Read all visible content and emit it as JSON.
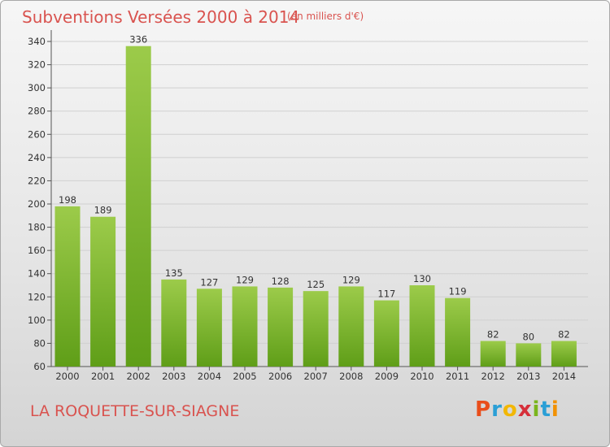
{
  "header": {
    "title": "Subventions Versées 2000 à 2014",
    "subtitle": "(en milliers d'€)"
  },
  "footer": {
    "commune": "LA ROQUETTE-SUR-SIAGNE",
    "logo_letters": [
      "P",
      "r",
      "o",
      "x",
      "i",
      "t",
      "i"
    ],
    "logo_colors": [
      "#e94e1b",
      "#2a9fd6",
      "#f2b705",
      "#d62f3a",
      "#7ab51d",
      "#2a9fd6",
      "#f29100"
    ]
  },
  "colors": {
    "bar_top": "#9ccb4a",
    "bar_bottom": "#5f9e18",
    "title": "#d9534f",
    "grid": "#d0d0d0"
  },
  "chart_data": {
    "type": "bar",
    "title": "Subventions Versées 2000 à 2014",
    "subtitle": "(en milliers d'€)",
    "categories": [
      "2000",
      "2001",
      "2002",
      "2003",
      "2004",
      "2005",
      "2006",
      "2007",
      "2008",
      "2009",
      "2010",
      "2011",
      "2012",
      "2013",
      "2014"
    ],
    "values": [
      198,
      189,
      336,
      135,
      127,
      129,
      128,
      125,
      129,
      117,
      130,
      119,
      82,
      80,
      82
    ],
    "ylim": [
      60,
      340
    ],
    "yticks": [
      60,
      80,
      100,
      120,
      140,
      160,
      180,
      200,
      220,
      240,
      260,
      280,
      300,
      320,
      340
    ],
    "grid": true,
    "xlabel": "",
    "ylabel": ""
  }
}
